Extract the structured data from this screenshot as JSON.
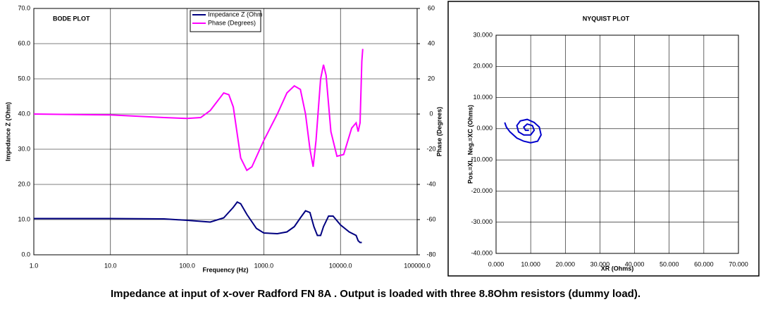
{
  "chart_data": [
    {
      "type": "line",
      "title": "BODE PLOT",
      "xlabel": "Frequency (Hz)",
      "ylabel": "Impedance Z (Ohm)",
      "y2label": "Phase (Degrees)",
      "xscale": "log",
      "xlim": [
        1,
        100000
      ],
      "xticks": [
        {
          "value": 1,
          "label": "1.0"
        },
        {
          "value": 10,
          "label": "10.0"
        },
        {
          "value": 100,
          "label": "100.0"
        },
        {
          "value": 1000,
          "label": "1000.0"
        },
        {
          "value": 10000,
          "label": "10000.0"
        },
        {
          "value": 100000,
          "label": "100000.0"
        }
      ],
      "ylim": [
        0,
        70
      ],
      "yticks": [
        {
          "value": 0,
          "label": "0.0"
        },
        {
          "value": 10,
          "label": "10.0"
        },
        {
          "value": 20,
          "label": "20.0"
        },
        {
          "value": 30,
          "label": "30.0"
        },
        {
          "value": 40,
          "label": "40.0"
        },
        {
          "value": 50,
          "label": "50.0"
        },
        {
          "value": 60,
          "label": "60.0"
        },
        {
          "value": 70,
          "label": "70.0"
        }
      ],
      "y2lim": [
        -80,
        60
      ],
      "y2ticks": [
        -80,
        -60,
        -40,
        -20,
        0,
        20,
        40,
        60
      ],
      "grid": true,
      "legend": "upper center",
      "series": [
        {
          "name": "Impedance Z (Ohm",
          "color": "#000080",
          "x": [
            1,
            10,
            50,
            100,
            200,
            300,
            400,
            450,
            500,
            600,
            800,
            1000,
            1500,
            2000,
            2500,
            3000,
            3500,
            4000,
            4500,
            5000,
            5500,
            6000,
            7000,
            8000,
            10000,
            13000,
            16000,
            17000,
            18000,
            19000
          ],
          "values": [
            10.3,
            10.3,
            10.2,
            9.8,
            9.3,
            10.5,
            13.5,
            15,
            14.5,
            11.5,
            7.5,
            6.2,
            6,
            6.5,
            8,
            10.5,
            12.5,
            12,
            8,
            5.5,
            5.5,
            8,
            11,
            11,
            8.5,
            6.5,
            5.5,
            4,
            3.5,
            3.5
          ]
        },
        {
          "name": "Phase (Degrees)",
          "color": "#ff00ff",
          "axis": "y2",
          "x": [
            1,
            10,
            50,
            100,
            150,
            200,
            300,
            350,
            400,
            500,
            600,
            700,
            1000,
            1500,
            2000,
            2500,
            3000,
            3500,
            4000,
            4400,
            4800,
            5500,
            6000,
            6500,
            7500,
            9000,
            11000,
            14000,
            16000,
            17000,
            18000,
            19000,
            19500
          ],
          "values": [
            0,
            -0.5,
            -2,
            -2.5,
            -2,
            2,
            12,
            11,
            4,
            -25,
            -32,
            -30,
            -15,
            0,
            12,
            16,
            14,
            0,
            -20,
            -30,
            -15,
            20,
            28,
            22,
            -10,
            -24,
            -23,
            -8,
            -5,
            -10,
            -5,
            30,
            37
          ]
        }
      ]
    },
    {
      "type": "line",
      "title": "NYQUIST PLOT",
      "xlabel": "XR (Ohms)",
      "ylabel": "Pos.=XL, Neg.=XC (Ohms)",
      "xlim": [
        0,
        70
      ],
      "xticks": [
        {
          "value": 0,
          "label": "0.000"
        },
        {
          "value": 10,
          "label": "10.000"
        },
        {
          "value": 20,
          "label": "20.000"
        },
        {
          "value": 30,
          "label": "30.000"
        },
        {
          "value": 40,
          "label": "40.000"
        },
        {
          "value": 50,
          "label": "50.000"
        },
        {
          "value": 60,
          "label": "60.000"
        },
        {
          "value": 70,
          "label": "70.000"
        }
      ],
      "ylim": [
        -40,
        30
      ],
      "yticks": [
        {
          "value": -40,
          "label": "-40.000"
        },
        {
          "value": -30,
          "label": "-30.000"
        },
        {
          "value": -20,
          "label": "-20.000"
        },
        {
          "value": -10,
          "label": "-10.000"
        },
        {
          "value": 0,
          "label": "0.000"
        },
        {
          "value": 10,
          "label": "10.000"
        },
        {
          "value": 20,
          "label": "20.000"
        },
        {
          "value": 30,
          "label": "30.000"
        }
      ],
      "grid": true,
      "color": "#0000cc",
      "x": [
        2.5,
        3,
        4,
        6,
        8,
        10,
        12,
        13,
        12.5,
        11,
        9,
        7,
        6,
        6.5,
        8,
        10,
        11,
        10.5,
        9,
        8,
        8.5,
        9.5
      ],
      "values": [
        2,
        0.5,
        -1,
        -3,
        -4,
        -4.5,
        -4,
        -2,
        0.5,
        2,
        3,
        2.5,
        1,
        -1,
        -2,
        -2,
        -0.5,
        1,
        1.5,
        0.5,
        -0.5,
        -0.5
      ]
    }
  ],
  "caption": "Impedance at input of x-over Radford FN 8A .  Output is loaded with  three 8.8Ohm resistors (dummy load)."
}
